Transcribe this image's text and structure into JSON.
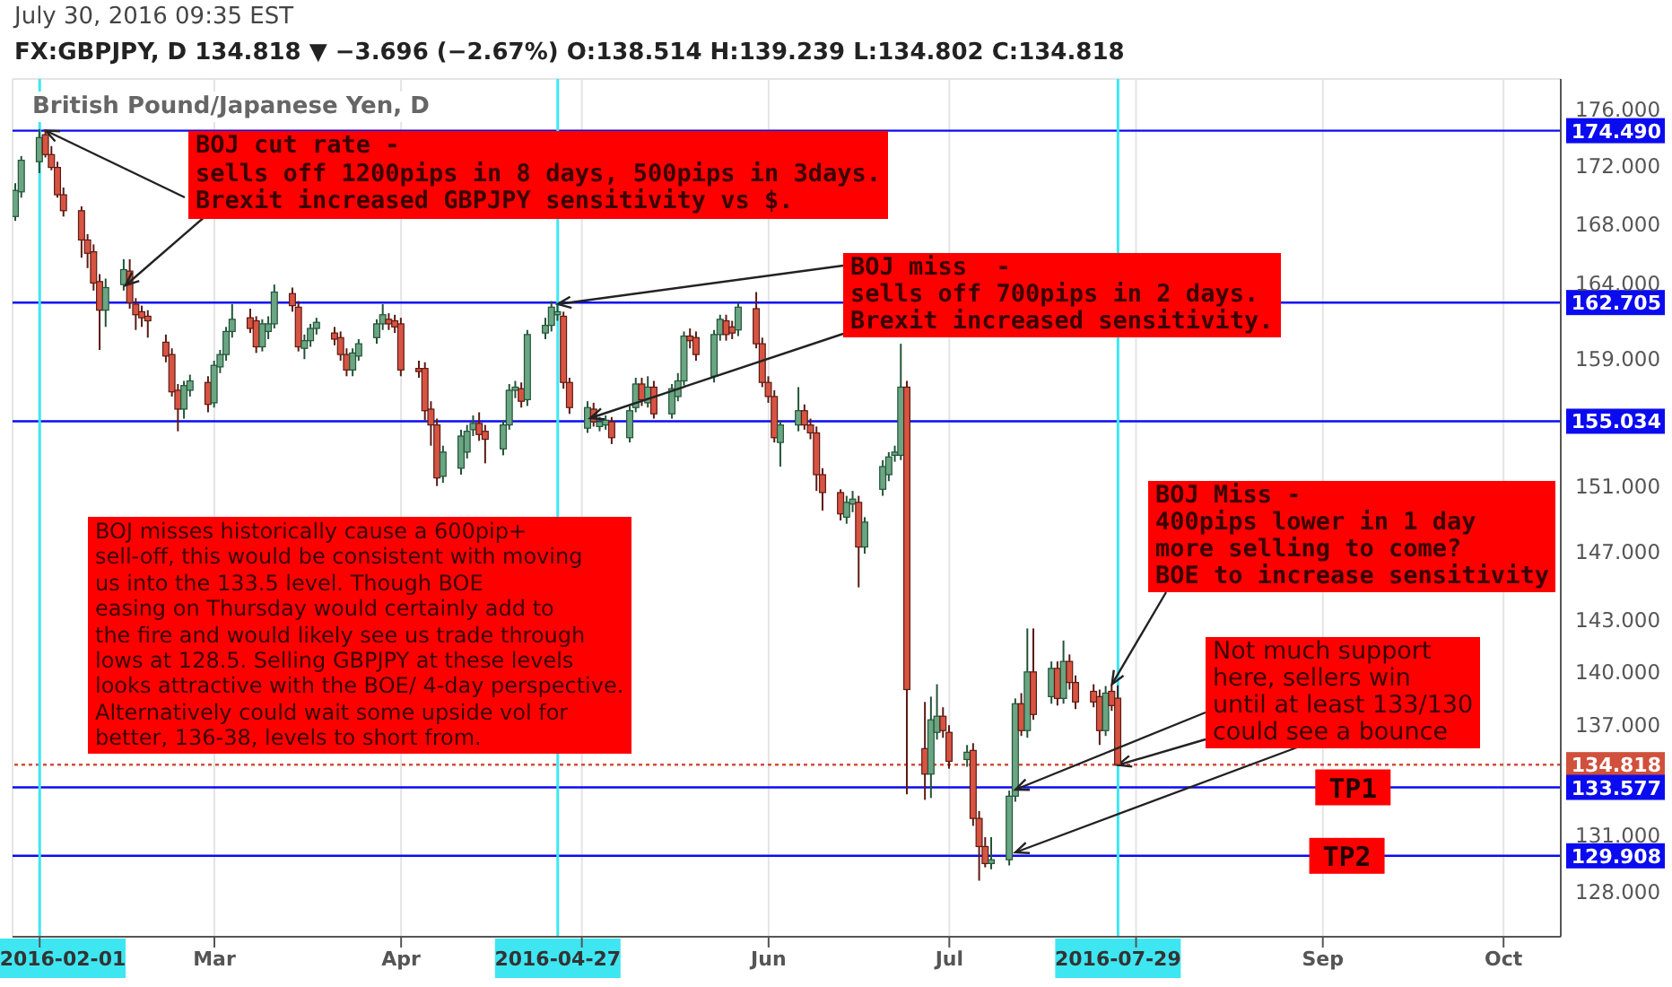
{
  "chart_data": {
    "type": "candlestick",
    "title": "British Pound/Japanese Yen, D",
    "subtitle": "FX:GBPJPY, D 134.818 ▼ −3.696 (−2.67%) O:138.514 H:139.239 L:134.802 C:134.818",
    "annotations": [
      "July 30, 2016 09:35 EST",
      {
        "text": "BOJ cut rate -\nsells off 1200pips in 8 days, 500pips in 3days.\nBrexit increased GBPJPY sensitivity vs $.",
        "x": "2016-02-02",
        "y": 174.5
      },
      {
        "text": "BOJ miss  -\nsells off 700pips in 2 days.\nBrexit increased sensitivity.",
        "x": "2016-04-27",
        "y": 162.6
      },
      {
        "text": "BOJ Miss -\n400pips lower in 1 day\nmore selling to come?\nBOE to increase sensitivity",
        "x": "2016-07-28",
        "y": 139.3
      },
      {
        "text": "Not much support\nhere, sellers win\nuntil at least 133/130\ncould see a bounce",
        "x": "2016-07-29",
        "y": 134.8
      },
      "BOJ misses historically cause a 600pip+\nsell-off, this would be consistent with moving\nus into the 133.5 level. Though BOE\neasing on Thursday would certainly add to\nthe fire and would likely see us trade through\nlows at 128.5. Selling GBPJPY at these levels\nlooks attractive with the BOE/ 4-day perspective.\nAlternatively could wait some upside vol for\nbetter, 136-38, levels to short from.",
      {
        "text": "TP1",
        "x": "2016-09-06",
        "y": 133.577
      },
      {
        "text": "TP2",
        "x": "2016-09-05",
        "y": 129.908
      }
    ],
    "x": [
      "2016-01-28",
      "2016-01-29",
      "2016-02-01",
      "2016-02-02",
      "2016-02-03",
      "2016-02-04",
      "2016-02-05",
      "2016-02-08",
      "2016-02-09",
      "2016-02-10",
      "2016-02-11",
      "2016-02-12",
      "2016-02-15",
      "2016-02-16",
      "2016-02-17",
      "2016-02-18",
      "2016-02-19",
      "2016-02-22",
      "2016-02-23",
      "2016-02-24",
      "2016-02-25",
      "2016-02-26",
      "2016-02-29",
      "2016-03-01",
      "2016-03-02",
      "2016-03-03",
      "2016-03-04",
      "2016-03-07",
      "2016-03-08",
      "2016-03-09",
      "2016-03-10",
      "2016-03-11",
      "2016-03-14",
      "2016-03-15",
      "2016-03-16",
      "2016-03-17",
      "2016-03-18",
      "2016-03-21",
      "2016-03-22",
      "2016-03-23",
      "2016-03-24",
      "2016-03-25",
      "2016-03-28",
      "2016-03-29",
      "2016-03-30",
      "2016-03-31",
      "2016-04-01",
      "2016-04-04",
      "2016-04-05",
      "2016-04-06",
      "2016-04-07",
      "2016-04-08",
      "2016-04-11",
      "2016-04-12",
      "2016-04-13",
      "2016-04-14",
      "2016-04-15",
      "2016-04-18",
      "2016-04-19",
      "2016-04-20",
      "2016-04-21",
      "2016-04-22",
      "2016-04-25",
      "2016-04-26",
      "2016-04-27",
      "2016-04-28",
      "2016-04-29",
      "2016-05-02",
      "2016-05-03",
      "2016-05-04",
      "2016-05-05",
      "2016-05-06",
      "2016-05-09",
      "2016-05-10",
      "2016-05-11",
      "2016-05-12",
      "2016-05-13",
      "2016-05-16",
      "2016-05-17",
      "2016-05-18",
      "2016-05-19",
      "2016-05-20",
      "2016-05-23",
      "2016-05-24",
      "2016-05-25",
      "2016-05-26",
      "2016-05-27",
      "2016-05-30",
      "2016-05-31",
      "2016-06-01",
      "2016-06-02",
      "2016-06-03",
      "2016-06-06",
      "2016-06-07",
      "2016-06-08",
      "2016-06-09",
      "2016-06-10",
      "2016-06-13",
      "2016-06-14",
      "2016-06-15",
      "2016-06-16",
      "2016-06-17",
      "2016-06-20",
      "2016-06-21",
      "2016-06-22",
      "2016-06-23",
      "2016-06-24",
      "2016-06-27",
      "2016-06-28",
      "2016-06-29",
      "2016-06-30",
      "2016-07-01",
      "2016-07-04",
      "2016-07-05",
      "2016-07-06",
      "2016-07-07",
      "2016-07-08",
      "2016-07-11",
      "2016-07-12",
      "2016-07-13",
      "2016-07-14",
      "2016-07-15",
      "2016-07-18",
      "2016-07-19",
      "2016-07-20",
      "2016-07-21",
      "2016-07-22",
      "2016-07-25",
      "2016-07-26",
      "2016-07-27",
      "2016-07-28",
      "2016-07-29"
    ],
    "ohlc": [
      [
        168.5,
        170.8,
        168.2,
        170.3
      ],
      [
        170.2,
        172.7,
        169.8,
        172.4
      ],
      [
        172.3,
        174.6,
        171.5,
        174.0
      ],
      [
        174.2,
        174.5,
        172.6,
        172.8
      ],
      [
        172.8,
        173.4,
        171.7,
        171.9
      ],
      [
        171.9,
        172.3,
        169.8,
        170.0
      ],
      [
        170.0,
        170.5,
        168.5,
        168.9
      ],
      [
        168.9,
        169.2,
        165.7,
        166.9
      ],
      [
        166.9,
        167.3,
        165.0,
        166.0
      ],
      [
        166.1,
        166.6,
        163.5,
        164.0
      ],
      [
        164.1,
        164.6,
        159.6,
        162.2
      ],
      [
        162.2,
        164.3,
        161.1,
        163.7
      ],
      [
        163.9,
        165.6,
        163.5,
        164.9
      ],
      [
        164.8,
        165.6,
        162.3,
        162.7
      ],
      [
        162.6,
        163.0,
        160.9,
        161.9
      ],
      [
        162.1,
        162.5,
        161.1,
        161.7
      ],
      [
        161.8,
        162.2,
        160.4,
        161.5
      ],
      [
        160.1,
        160.6,
        158.8,
        159.2
      ],
      [
        159.3,
        159.7,
        156.6,
        156.9
      ],
      [
        157.0,
        157.4,
        154.4,
        155.8
      ],
      [
        155.8,
        157.6,
        155.2,
        157.3
      ],
      [
        157.0,
        158.0,
        156.6,
        157.6
      ],
      [
        157.5,
        157.9,
        155.6,
        156.1
      ],
      [
        156.2,
        158.9,
        155.9,
        158.6
      ],
      [
        158.5,
        159.6,
        158.1,
        159.3
      ],
      [
        159.3,
        161.1,
        158.9,
        160.8
      ],
      [
        160.8,
        162.6,
        160.4,
        161.6
      ],
      [
        161.7,
        162.3,
        160.7,
        161.0
      ],
      [
        161.5,
        161.8,
        159.4,
        159.8
      ],
      [
        159.8,
        161.6,
        159.5,
        161.3
      ],
      [
        160.8,
        161.8,
        160.3,
        161.3
      ],
      [
        161.3,
        163.9,
        161.0,
        163.4
      ],
      [
        163.3,
        163.7,
        162.1,
        162.5
      ],
      [
        162.4,
        162.8,
        159.5,
        159.8
      ],
      [
        159.7,
        160.6,
        159.0,
        160.2
      ],
      [
        160.2,
        161.3,
        159.8,
        161.0
      ],
      [
        161.0,
        161.7,
        160.6,
        161.4
      ],
      [
        160.7,
        161.1,
        159.9,
        160.3
      ],
      [
        160.4,
        160.8,
        158.9,
        159.3
      ],
      [
        159.3,
        159.7,
        157.9,
        158.3
      ],
      [
        158.3,
        159.7,
        157.9,
        159.4
      ],
      [
        159.2,
        160.3,
        158.9,
        160.0
      ],
      [
        160.4,
        161.6,
        160.0,
        161.3
      ],
      [
        161.3,
        162.6,
        160.9,
        161.9
      ],
      [
        161.6,
        162.0,
        160.9,
        161.3
      ],
      [
        161.5,
        161.9,
        160.7,
        161.1
      ],
      [
        161.3,
        161.7,
        157.9,
        158.3
      ],
      [
        158.4,
        158.9,
        157.8,
        158.2
      ],
      [
        158.4,
        158.8,
        155.1,
        155.7
      ],
      [
        155.8,
        156.3,
        153.5,
        154.8
      ],
      [
        154.8,
        155.2,
        151.0,
        151.5
      ],
      [
        151.6,
        153.5,
        151.2,
        153.1
      ],
      [
        152.1,
        154.5,
        151.7,
        154.1
      ],
      [
        153.1,
        154.8,
        152.7,
        154.4
      ],
      [
        154.5,
        155.4,
        154.1,
        154.9
      ],
      [
        154.9,
        155.6,
        153.8,
        154.2
      ],
      [
        154.4,
        154.8,
        152.4,
        153.9
      ],
      [
        153.3,
        155.1,
        152.9,
        154.8
      ],
      [
        154.8,
        157.4,
        154.5,
        157.0
      ],
      [
        157.0,
        157.6,
        156.5,
        157.2
      ],
      [
        157.1,
        157.5,
        155.9,
        156.3
      ],
      [
        156.4,
        160.9,
        156.0,
        160.6
      ],
      [
        160.7,
        161.7,
        160.3,
        161.2
      ],
      [
        161.2,
        162.8,
        160.8,
        162.4
      ],
      [
        161.9,
        162.6,
        161.5,
        162.1
      ],
      [
        161.8,
        162.1,
        157.1,
        157.5
      ],
      [
        157.5,
        157.8,
        155.5,
        155.9
      ],
      [
        154.6,
        156.3,
        154.3,
        155.9
      ],
      [
        155.8,
        156.2,
        154.7,
        155.0
      ],
      [
        154.7,
        155.3,
        154.4,
        155.0
      ],
      [
        154.8,
        155.4,
        154.5,
        155.1
      ],
      [
        155.0,
        155.3,
        153.6,
        154.0
      ],
      [
        154.0,
        156.0,
        153.7,
        155.7
      ],
      [
        155.9,
        157.8,
        155.6,
        157.4
      ],
      [
        157.4,
        157.8,
        156.0,
        156.4
      ],
      [
        156.2,
        157.9,
        155.9,
        157.2
      ],
      [
        157.2,
        157.6,
        155.2,
        155.5
      ],
      [
        155.5,
        157.4,
        155.2,
        157.1
      ],
      [
        156.6,
        158.1,
        156.3,
        157.6
      ],
      [
        157.6,
        160.8,
        157.3,
        160.5
      ],
      [
        160.5,
        161.0,
        159.7,
        160.2
      ],
      [
        160.4,
        160.8,
        158.9,
        159.3
      ],
      [
        157.9,
        160.9,
        157.5,
        160.6
      ],
      [
        160.6,
        161.9,
        160.2,
        161.6
      ],
      [
        161.5,
        161.9,
        160.2,
        160.6
      ],
      [
        161.1,
        161.5,
        160.3,
        160.7
      ],
      [
        160.9,
        162.7,
        160.5,
        162.4
      ],
      [
        162.3,
        163.4,
        159.7,
        160.0
      ],
      [
        160.0,
        160.4,
        157.2,
        157.5
      ],
      [
        157.5,
        157.9,
        156.2,
        156.6
      ],
      [
        156.6,
        157.0,
        153.7,
        154.0
      ],
      [
        153.7,
        155.1,
        152.2,
        154.8
      ],
      [
        154.8,
        157.2,
        154.4,
        155.7
      ],
      [
        155.7,
        156.1,
        154.5,
        154.8
      ],
      [
        154.8,
        155.2,
        153.9,
        154.3
      ],
      [
        154.3,
        154.7,
        150.7,
        151.7
      ],
      [
        151.7,
        152.1,
        149.5,
        150.6
      ],
      [
        150.6,
        150.8,
        148.9,
        149.3
      ],
      [
        149.1,
        150.4,
        148.7,
        150.0
      ],
      [
        149.9,
        150.7,
        149.4,
        150.2
      ],
      [
        150.0,
        150.4,
        144.9,
        147.3
      ],
      [
        147.3,
        149.1,
        146.9,
        148.8
      ],
      [
        150.8,
        152.6,
        150.4,
        152.2
      ],
      [
        151.7,
        153.1,
        151.3,
        152.8
      ],
      [
        152.9,
        153.5,
        152.5,
        153.1
      ],
      [
        152.9,
        160.0,
        152.6,
        157.2
      ],
      [
        157.2,
        157.6,
        133.2,
        139.0
      ],
      [
        135.7,
        138.3,
        132.9,
        134.3
      ],
      [
        134.3,
        138.6,
        133.0,
        137.3
      ],
      [
        136.6,
        139.3,
        136.2,
        137.5
      ],
      [
        137.5,
        138.0,
        136.3,
        136.7
      ],
      [
        136.6,
        137.0,
        134.6,
        135.0
      ],
      [
        135.1,
        135.9,
        134.7,
        135.5
      ],
      [
        135.6,
        136.0,
        131.5,
        131.9
      ],
      [
        131.9,
        132.3,
        128.6,
        130.4
      ],
      [
        130.4,
        130.9,
        129.3,
        129.5
      ],
      [
        129.5,
        130.9,
        129.2,
        129.7
      ],
      [
        129.7,
        133.4,
        129.4,
        133.1
      ],
      [
        133.1,
        138.5,
        132.8,
        138.2
      ],
      [
        138.2,
        138.8,
        136.4,
        136.7
      ],
      [
        136.7,
        142.5,
        136.3,
        140.0
      ],
      [
        140.0,
        142.5,
        137.3,
        137.6
      ],
      [
        138.6,
        140.6,
        138.2,
        140.2
      ],
      [
        140.2,
        140.6,
        138.1,
        138.5
      ],
      [
        138.5,
        141.8,
        138.2,
        140.6
      ],
      [
        140.6,
        141.0,
        139.0,
        139.4
      ],
      [
        139.4,
        139.8,
        137.9,
        138.3
      ],
      [
        138.9,
        139.3,
        138.0,
        138.3
      ],
      [
        138.6,
        139.0,
        135.9,
        136.7
      ],
      [
        136.7,
        139.2,
        136.4,
        138.8
      ],
      [
        138.9,
        139.3,
        137.8,
        138.1
      ],
      [
        138.514,
        139.239,
        134.802,
        134.818
      ]
    ],
    "xlim": [
      "2016-01-27T12:00",
      "2016-10-10T12:00"
    ],
    "xticks": [
      {
        "value": "2016-02-01",
        "label": null
      },
      {
        "value": "2016-03-01",
        "label": "Mar"
      },
      {
        "value": "2016-04-01",
        "label": "Apr"
      },
      {
        "value": "2016-05-01",
        "label": null
      },
      {
        "value": "2016-06-01",
        "label": "Jun"
      },
      {
        "value": "2016-07-01",
        "label": "Jul"
      },
      {
        "value": "2016-08-01",
        "label": null
      },
      {
        "value": "2016-09-01",
        "label": "Sep"
      },
      {
        "value": "2016-10-01",
        "label": "Oct"
      }
    ],
    "ylim": [
      125.7,
      178.2
    ],
    "yticks": [
      {
        "value": 128,
        "label": "128.000"
      },
      {
        "value": 131,
        "label": "131.000"
      },
      {
        "value": 137,
        "label": "137.000"
      },
      {
        "value": 140,
        "label": "140.000"
      },
      {
        "value": 143,
        "label": "143.000"
      },
      {
        "value": 147,
        "label": "147.000"
      },
      {
        "value": 151,
        "label": "151.000"
      },
      {
        "value": 159,
        "label": "159.000"
      },
      {
        "value": 164,
        "label": "164.000"
      },
      {
        "value": 168,
        "label": "168.000"
      },
      {
        "value": 172,
        "label": "172.000"
      },
      {
        "value": 176,
        "label": "176.000"
      }
    ],
    "log": true,
    "grid": true,
    "ref_lines": [
      {
        "axis": "y",
        "value": 174.49,
        "label": "174.490",
        "color": "#0b0bf0",
        "line_style": "solid"
      },
      {
        "axis": "y",
        "value": 162.705,
        "label": "162.705",
        "color": "#0b0bf0",
        "line_style": "solid"
      },
      {
        "axis": "y",
        "value": 155.034,
        "label": "155.034",
        "color": "#0b0bf0",
        "line_style": "solid"
      },
      {
        "axis": "y",
        "value": 134.818,
        "label": "134.818",
        "color": "#d0503c",
        "line_style": "dotted"
      },
      {
        "axis": "y",
        "value": 133.577,
        "label": "133.577",
        "color": "#0b0bf0",
        "line_style": "solid"
      },
      {
        "axis": "y",
        "value": 129.908,
        "label": "129.908",
        "color": "#0b0bf0",
        "line_style": "solid"
      },
      {
        "axis": "x",
        "value": "2016-02-01",
        "label": "2016-02-01",
        "color": "#3ee6f2",
        "line_style": "solid"
      },
      {
        "axis": "x",
        "value": "2016-04-27",
        "label": "2016-04-27",
        "color": "#3ee6f2",
        "line_style": "solid"
      },
      {
        "axis": "x",
        "value": "2016-07-29",
        "label": "2016-07-29",
        "color": "#3ee6f2",
        "line_style": "solid"
      }
    ]
  }
}
